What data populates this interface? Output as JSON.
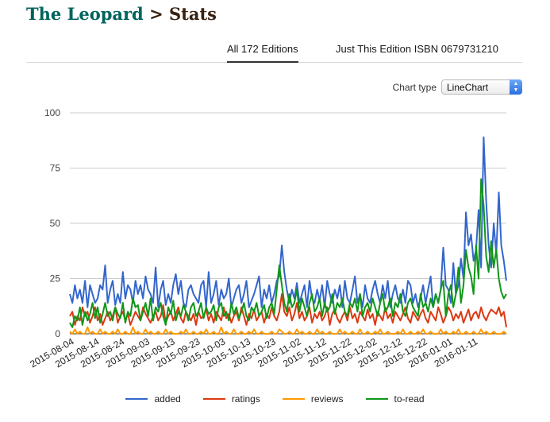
{
  "header": {
    "book_title": "The Leopard",
    "separator": ">",
    "page_title": "Stats"
  },
  "tabs": [
    {
      "label": "All 172 Editions",
      "active": true
    },
    {
      "label": "Just This Edition ISBN 0679731210",
      "active": false
    }
  ],
  "chart_type": {
    "label": "Chart type",
    "selected": "LineChart"
  },
  "chart_data": {
    "type": "line",
    "title": "",
    "xlabel": "",
    "ylabel": "",
    "ylim": [
      0,
      100
    ],
    "yticks": [
      0,
      25,
      50,
      75,
      100
    ],
    "grid": true,
    "legend": "bottom",
    "x_start": "2015-08-04",
    "xtick_labels": [
      "2015-08-04",
      "2015-08-14",
      "2015-08-24",
      "2015-09-03",
      "2015-09-13",
      "2015-09-23",
      "2015-10-03",
      "2015-10-13",
      "2015-10-23",
      "2015-11-02",
      "2015-11-12",
      "2015-11-22",
      "2015-12-02",
      "2015-12-12",
      "2015-12-22",
      "2016-01-01",
      "2016-01-11"
    ],
    "series": [
      {
        "name": "added",
        "color": "#3366cc",
        "values": [
          18,
          14,
          22,
          16,
          20,
          14,
          24,
          12,
          22,
          18,
          14,
          16,
          22,
          20,
          31,
          14,
          20,
          24,
          13,
          18,
          14,
          28,
          16,
          22,
          20,
          14,
          24,
          18,
          22,
          16,
          26,
          20,
          18,
          14,
          30,
          12,
          20,
          24,
          13,
          18,
          14,
          22,
          27,
          18,
          24,
          14,
          12,
          20,
          22,
          18,
          16,
          14,
          22,
          24,
          12,
          28,
          14,
          18,
          24,
          13,
          20,
          16,
          18,
          25,
          12,
          16,
          20,
          22,
          14,
          18,
          24,
          12,
          15,
          18,
          22,
          26,
          12,
          20,
          16,
          22,
          14,
          18,
          24,
          26,
          40,
          28,
          20,
          14,
          20,
          16,
          23,
          14,
          18,
          22,
          12,
          24,
          16,
          14,
          20,
          15,
          22,
          12,
          24,
          18,
          14,
          20,
          16,
          22,
          12,
          24,
          16,
          14,
          20,
          26,
          14,
          18,
          12,
          22,
          16,
          14,
          20,
          24,
          18,
          14,
          22,
          16,
          24,
          12,
          18,
          22,
          16,
          14,
          20,
          14,
          24,
          22,
          14,
          18,
          12,
          16,
          22,
          14,
          20,
          26,
          12,
          18,
          14,
          20,
          39,
          22,
          20,
          14,
          32,
          18,
          22,
          34,
          25,
          55,
          40,
          45,
          33,
          38,
          56,
          30,
          89,
          60,
          40,
          30,
          50,
          36,
          64,
          40,
          33,
          24
        ]
      },
      {
        "name": "ratings",
        "color": "#dc3912",
        "values": [
          8,
          10,
          4,
          8,
          6,
          12,
          8,
          10,
          5,
          8,
          12,
          6,
          9,
          4,
          7,
          10,
          6,
          8,
          12,
          5,
          8,
          10,
          6,
          9,
          4,
          7,
          10,
          8,
          6,
          12,
          9,
          7,
          5,
          8,
          10,
          6,
          8,
          13,
          5,
          8,
          10,
          6,
          9,
          12,
          7,
          5,
          10,
          8,
          6,
          9,
          4,
          10,
          7,
          8,
          11,
          6,
          9,
          5,
          10,
          8,
          6,
          12,
          7,
          9,
          5,
          8,
          10,
          6,
          12,
          8,
          4,
          9,
          7,
          11,
          6,
          8,
          10,
          5,
          9,
          7,
          12,
          8,
          6,
          10,
          18,
          10,
          8,
          12,
          6,
          9,
          14,
          7,
          10,
          6,
          8,
          12,
          5,
          9,
          7,
          10,
          6,
          8,
          12,
          4,
          9,
          11,
          7,
          5,
          8,
          10,
          6,
          12,
          7,
          9,
          5,
          10,
          8,
          6,
          11,
          7,
          9,
          4,
          10,
          8,
          6,
          12,
          7,
          9,
          5,
          10,
          8,
          6,
          9,
          12,
          7,
          5,
          10,
          8,
          6,
          9,
          11,
          7,
          5,
          10,
          8,
          6,
          12,
          9,
          5,
          8,
          12,
          10,
          6,
          9,
          7,
          10,
          5,
          8,
          11,
          6,
          9,
          10,
          7,
          12,
          8,
          6,
          9,
          11,
          10,
          9,
          12,
          8,
          10,
          3
        ]
      },
      {
        "name": "reviews",
        "color": "#ff9900",
        "values": [
          1,
          0,
          2,
          0,
          1,
          0,
          0,
          3,
          0,
          1,
          0,
          0,
          2,
          0,
          1,
          0,
          0,
          1,
          0,
          2,
          0,
          0,
          1,
          0,
          0,
          3,
          0,
          1,
          0,
          0,
          2,
          0,
          1,
          0,
          0,
          1,
          0,
          0,
          2,
          0,
          1,
          0,
          0,
          0,
          1,
          0,
          2,
          0,
          0,
          1,
          0,
          0,
          1,
          0,
          2,
          0,
          0,
          1,
          0,
          0,
          3,
          0,
          1,
          0,
          0,
          2,
          0,
          0,
          1,
          0,
          0,
          1,
          0,
          2,
          0,
          0,
          1,
          0,
          0,
          0,
          1,
          0,
          0,
          2,
          1,
          0,
          0,
          1,
          0,
          0,
          2,
          0,
          1,
          0,
          0,
          1,
          0,
          0,
          2,
          0,
          1,
          0,
          0,
          1,
          0,
          0,
          0,
          2,
          0,
          1,
          0,
          0,
          1,
          0,
          0,
          2,
          0,
          0,
          1,
          0,
          0,
          1,
          0,
          2,
          0,
          0,
          1,
          0,
          0,
          0,
          1,
          0,
          2,
          0,
          0,
          1,
          0,
          0,
          1,
          0,
          2,
          0,
          0,
          1,
          0,
          0,
          0,
          2,
          0,
          1,
          0,
          0,
          1,
          0,
          2,
          0,
          0,
          1,
          0,
          0,
          1,
          0,
          0,
          2,
          0,
          1,
          0,
          0,
          1,
          0,
          0,
          0,
          1,
          0
        ]
      },
      {
        "name": "to-read",
        "color": "#109618",
        "values": [
          5,
          3,
          8,
          6,
          12,
          4,
          10,
          6,
          9,
          14,
          7,
          12,
          5,
          9,
          14,
          8,
          10,
          6,
          12,
          9,
          7,
          14,
          5,
          10,
          8,
          16,
          12,
          13,
          6,
          10,
          14,
          8,
          16,
          6,
          12,
          10,
          14,
          8,
          4,
          12,
          9,
          15,
          6,
          10,
          8,
          13,
          10,
          6,
          12,
          14,
          8,
          10,
          14,
          7,
          12,
          9,
          10,
          13,
          6,
          12,
          14,
          8,
          10,
          6,
          14,
          9,
          12,
          7,
          10,
          14,
          8,
          6,
          12,
          10,
          14,
          8,
          10,
          13,
          7,
          12,
          14,
          9,
          20,
          31,
          22,
          14,
          10,
          18,
          12,
          14,
          20,
          10,
          16,
          12,
          8,
          14,
          18,
          10,
          12,
          16,
          8,
          14,
          10,
          12,
          18,
          9,
          14,
          12,
          16,
          10,
          8,
          14,
          12,
          16,
          10,
          18,
          8,
          12,
          14,
          10,
          16,
          12,
          8,
          14,
          18,
          10,
          12,
          16,
          8,
          14,
          12,
          18,
          10,
          8,
          14,
          16,
          12,
          10,
          8,
          18,
          12,
          14,
          10,
          16,
          12,
          18,
          14,
          20,
          24,
          8,
          18,
          22,
          12,
          18,
          30,
          14,
          22,
          38,
          30,
          26,
          18,
          40,
          25,
          70,
          58,
          35,
          28,
          42,
          30,
          38,
          25,
          19,
          16,
          18
        ]
      }
    ]
  }
}
